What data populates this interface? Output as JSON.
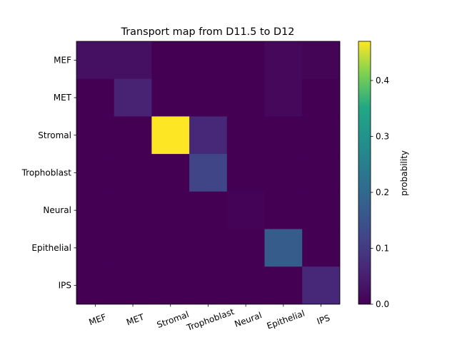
{
  "chart_data": {
    "type": "heatmap",
    "title": "Transport map from D11.5 to D12",
    "rows": [
      "MEF",
      "MET",
      "Stromal",
      "Trophoblast",
      "Neural",
      "Epithelial",
      "IPS"
    ],
    "columns": [
      "MEF",
      "MET",
      "Stromal",
      "Trophoblast",
      "Neural",
      "Epithelial",
      "IPS"
    ],
    "values": [
      [
        0.025,
        0.025,
        0.0,
        0.0,
        0.0,
        0.012,
        0.006
      ],
      [
        0.0,
        0.055,
        0.0,
        0.0,
        0.0,
        0.012,
        0.0
      ],
      [
        0.0,
        0.0,
        0.47,
        0.065,
        0.0,
        0.0,
        0.0
      ],
      [
        0.0,
        0.0,
        0.0,
        0.12,
        0.0,
        0.0,
        0.0
      ],
      [
        0.0,
        0.0,
        0.0,
        0.0,
        0.004,
        0.0,
        0.0
      ],
      [
        0.0,
        0.0,
        0.0,
        0.0,
        0.0,
        0.17,
        0.0
      ],
      [
        0.0,
        0.0,
        0.0,
        0.0,
        0.0,
        0.0,
        0.065
      ]
    ],
    "colorbar": {
      "label": "probability",
      "min": 0.0,
      "max": 0.47,
      "ticks": [
        0.0,
        0.1,
        0.2,
        0.3,
        0.4
      ],
      "tick_labels": [
        "0.0",
        "0.1",
        "0.2",
        "0.3",
        "0.4"
      ],
      "colormap": "viridis"
    },
    "grid": false
  }
}
